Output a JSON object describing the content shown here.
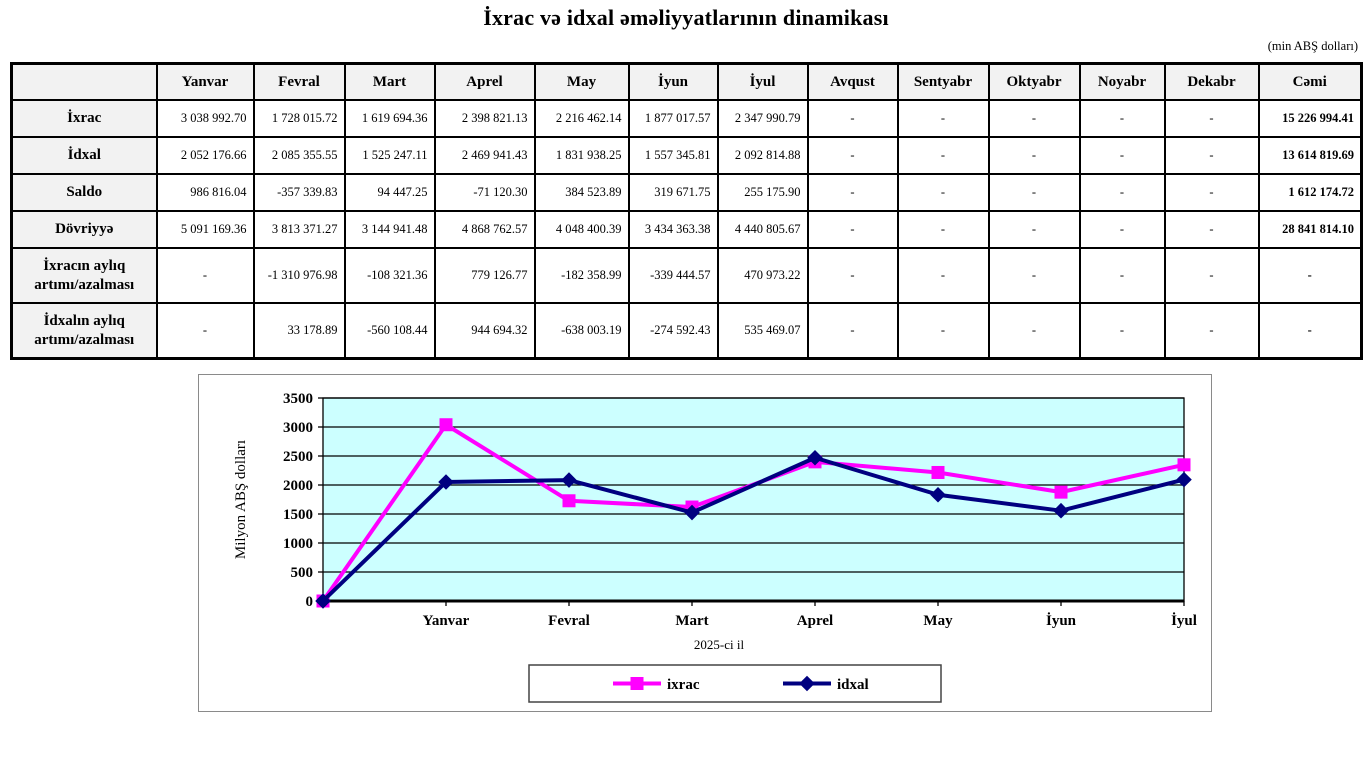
{
  "title": "İxrac və idxal əməliyyatlarının dinamikası",
  "unit_note": "(min ABŞ dolları)",
  "table": {
    "columns": [
      "",
      "Yanvar",
      "Fevral",
      "Mart",
      "Aprel",
      "May",
      "İyun",
      "İyul",
      "Avqust",
      "Sentyabr",
      "Oktyabr",
      "Noyabr",
      "Dekabr",
      "Cəmi"
    ],
    "rows": [
      {
        "label": "İxrac",
        "values": [
          "3 038 992.70",
          "1 728 015.72",
          "1 619 694.36",
          "2 398 821.13",
          "2 216 462.14",
          "1 877 017.57",
          "2 347 990.79",
          "-",
          "-",
          "-",
          "-",
          "-",
          "15 226 994.41"
        ]
      },
      {
        "label": "İdxal",
        "values": [
          "2 052 176.66",
          "2 085 355.55",
          "1 525 247.11",
          "2 469 941.43",
          "1 831 938.25",
          "1 557 345.81",
          "2 092 814.88",
          "-",
          "-",
          "-",
          "-",
          "-",
          "13 614 819.69"
        ]
      },
      {
        "label": "Saldo",
        "values": [
          "986 816.04",
          "-357 339.83",
          "94 447.25",
          "-71 120.30",
          "384 523.89",
          "319 671.75",
          "255 175.90",
          "-",
          "-",
          "-",
          "-",
          "-",
          "1 612 174.72"
        ]
      },
      {
        "label": "Dövriyyə",
        "values": [
          "5 091 169.36",
          "3 813 371.27",
          "3 144 941.48",
          "4 868 762.57",
          "4 048 400.39",
          "3 434 363.38",
          "4 440 805.67",
          "-",
          "-",
          "-",
          "-",
          "-",
          "28 841 814.10"
        ]
      },
      {
        "label": "İxracın aylıq artımı/azalması",
        "values": [
          "-",
          "-1 310 976.98",
          "-108 321.36",
          "779 126.77",
          "-182 358.99",
          "-339 444.57",
          "470 973.22",
          "-",
          "-",
          "-",
          "-",
          "-",
          "-"
        ]
      },
      {
        "label": "İdxalın aylıq artımı/azalması",
        "values": [
          "-",
          "33 178.89",
          "-560 108.44",
          "944 694.32",
          "-638 003.19",
          "-274 592.43",
          "535 469.07",
          "-",
          "-",
          "-",
          "-",
          "-",
          "-"
        ]
      }
    ]
  },
  "chart_data": {
    "type": "line",
    "categories": [
      "",
      "Yanvar",
      "Fevral",
      "Mart",
      "Aprel",
      "May",
      "İyun",
      "İyul"
    ],
    "series": [
      {
        "name": "ixrac",
        "color": "#FF00FF",
        "marker": "square",
        "values": [
          0,
          3039,
          1728,
          1620,
          2399,
          2216,
          1877,
          2348
        ]
      },
      {
        "name": "idxal",
        "color": "#000080",
        "marker": "diamond",
        "values": [
          0,
          2052,
          2085,
          1525,
          2470,
          1832,
          1557,
          2093
        ]
      }
    ],
    "ylabel": "Milyon ABŞ dolları",
    "xlabel": "2025-ci il",
    "ylim": [
      0,
      3500
    ],
    "yticks": [
      0,
      500,
      1000,
      1500,
      2000,
      2500,
      3000,
      3500
    ],
    "plot_bg": "#CCFFFF",
    "grid": true,
    "legend_position": "bottom"
  }
}
